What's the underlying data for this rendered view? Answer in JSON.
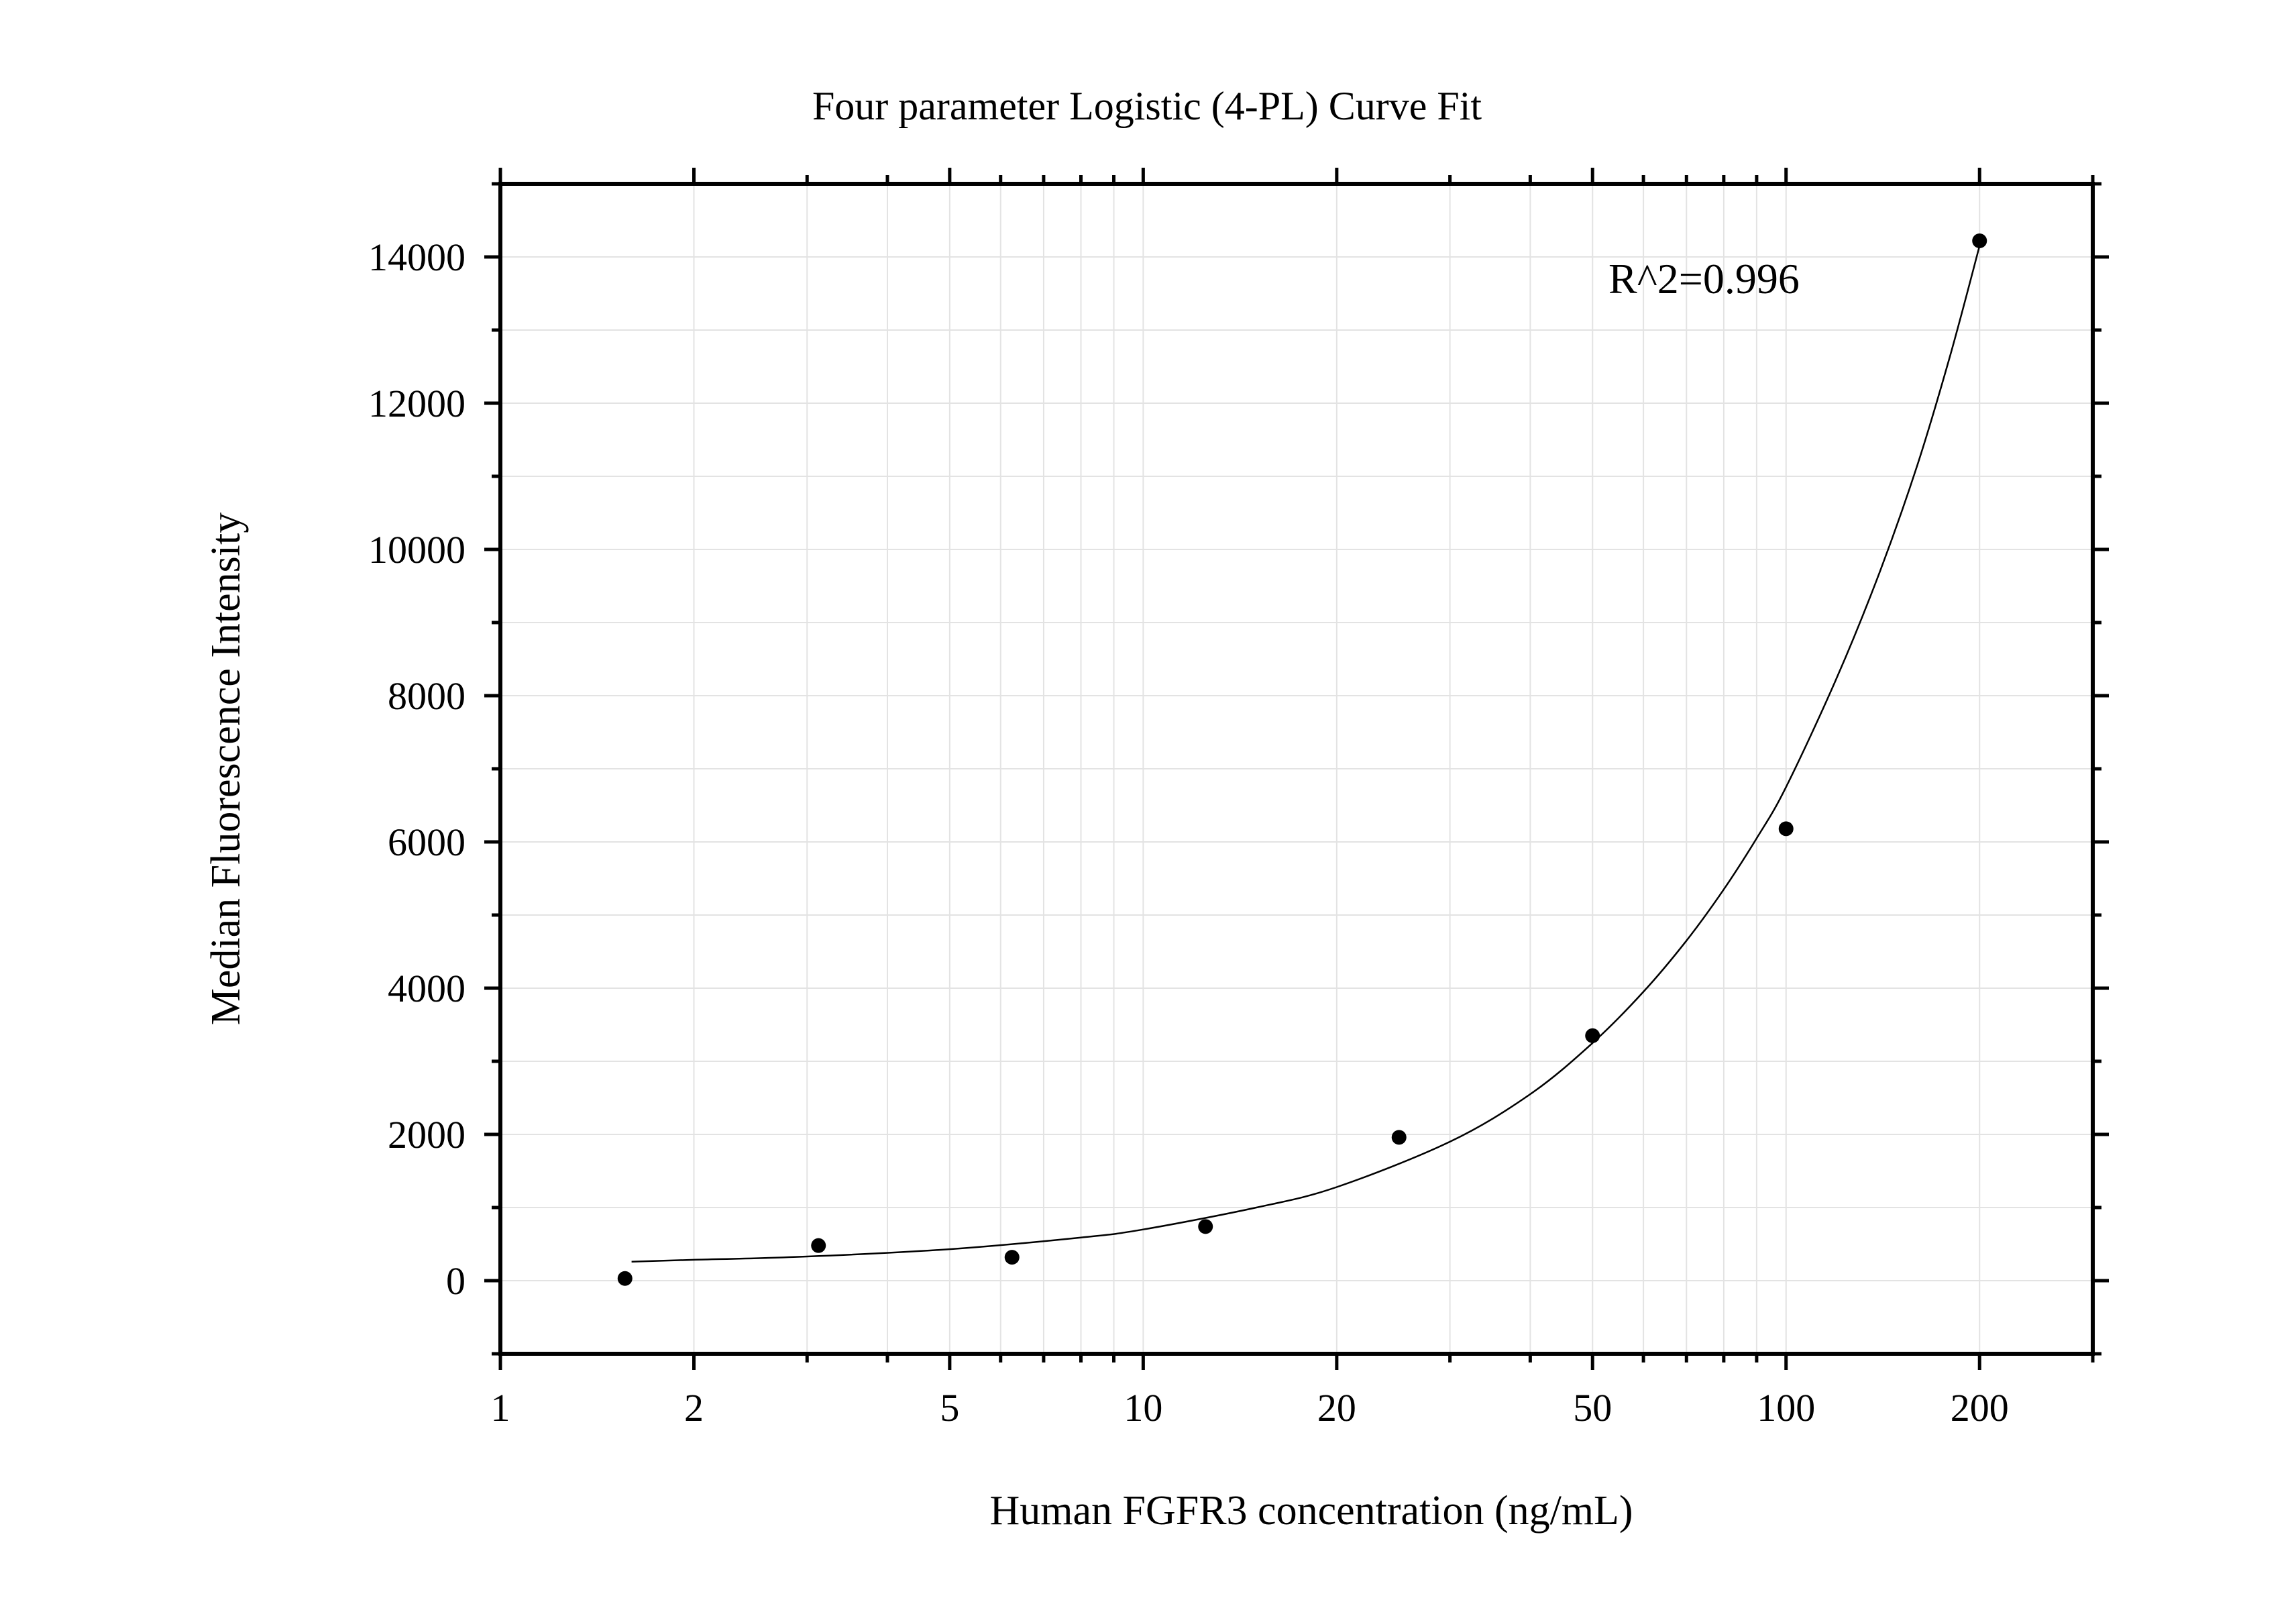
{
  "chart_data": {
    "type": "scatter",
    "title": "Four parameter Logistic (4-PL) Curve Fit",
    "xlabel": "Human FGFR3 concentration (ng/mL)",
    "ylabel": "Median Fluorescence Intensity",
    "x_scale": "log",
    "xlim": [
      1,
      300
    ],
    "ylim": [
      -1000,
      15000
    ],
    "x_ticks": [
      1,
      2,
      5,
      10,
      20,
      50,
      100,
      200
    ],
    "x_tick_labels": [
      "1",
      "2",
      "5",
      "10",
      "20",
      "50",
      "100",
      "200"
    ],
    "y_ticks": [
      0,
      2000,
      4000,
      6000,
      8000,
      10000,
      12000,
      14000
    ],
    "y_tick_labels": [
      "0",
      "2000",
      "4000",
      "6000",
      "8000",
      "10000",
      "12000",
      "14000"
    ],
    "grid": true,
    "annotation": "R^2=0.996",
    "points": {
      "x": [
        1.5625,
        3.125,
        6.25,
        12.5,
        25,
        50,
        100,
        200
      ],
      "y": [
        30,
        480,
        320,
        740,
        1960,
        3350,
        6180,
        14220
      ]
    },
    "fit_curve": {
      "x": [
        1.6,
        2,
        3,
        5,
        8,
        10,
        15,
        20,
        30,
        40,
        50,
        60,
        70,
        80,
        90,
        100,
        120,
        140,
        160,
        180,
        200
      ],
      "y": [
        260,
        285,
        330,
        430,
        590,
        700,
        1000,
        1280,
        1900,
        2550,
        3250,
        3950,
        4650,
        5350,
        6050,
        6750,
        8250,
        9700,
        11150,
        12650,
        14150
      ]
    }
  }
}
